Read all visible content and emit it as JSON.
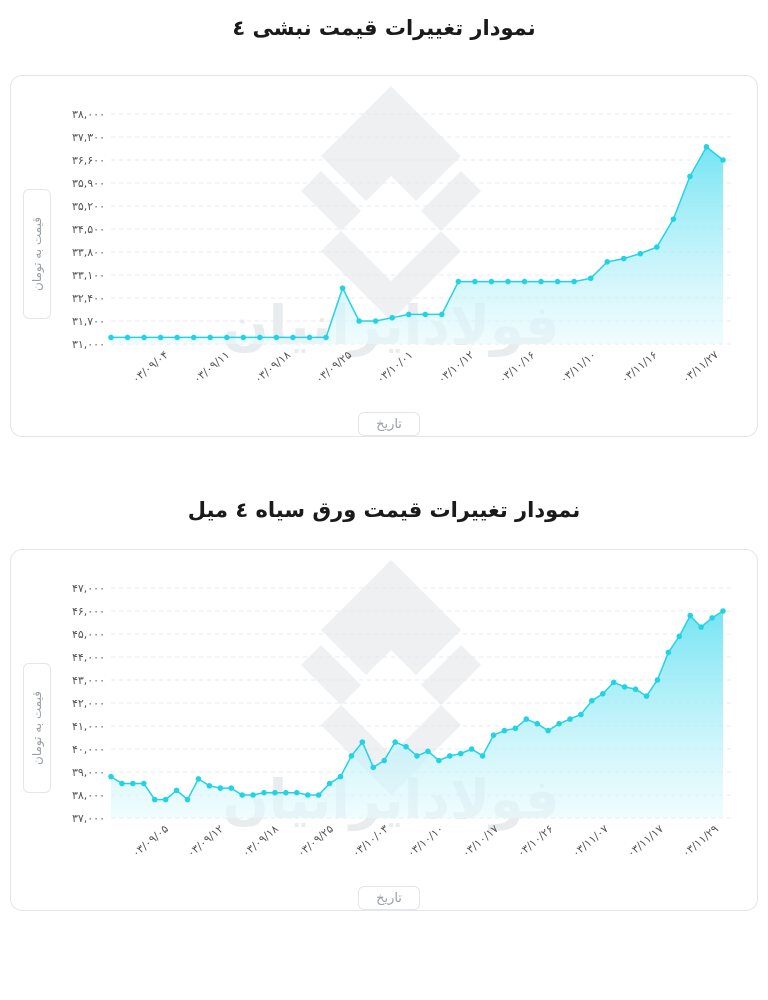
{
  "colors": {
    "line": "#22d3e6",
    "fill_top": "#6fe3f3",
    "fill_bottom": "#e6fafd",
    "grid": "#e6e9ec"
  },
  "watermark": {
    "text": "فولادایرانیان"
  },
  "charts": [
    {
      "title": "نمودار تغییرات قیمت نبشی ٤",
      "ylabel": "قیمت به تومان",
      "xlabel": "تاریخ",
      "yticks": [
        "۳۱,۰۰۰",
        "۳۱,۷۰۰",
        "۳۲,۴۰۰",
        "۳۳,۱۰۰",
        "۳۳,۸۰۰",
        "۳۴,۵۰۰",
        "۳۵,۲۰۰",
        "۳۵,۹۰۰",
        "۳۶,۶۰۰",
        "۳۷,۳۰۰",
        "۳۸,۰۰۰"
      ],
      "xticks": [
        "۰۳/۰۹/۰۴",
        "۰۳/۰۹/۱۱",
        "۰۳/۰۹/۱۸",
        "۰۳/۰۹/۲۵",
        "۰۳/۱۰/۰۱",
        "۰۳/۱۰/۱۲",
        "۰۳/۱۰/۱۶",
        "۰۳/۱۱/۱۰",
        "۰۳/۱۱/۱۶",
        "۰۳/۱۱/۲۷"
      ]
    },
    {
      "title": "نمودار تغییرات قیمت ورق سیاه ٤ میل",
      "ylabel": "قیمت به تومان",
      "xlabel": "تاریخ",
      "yticks": [
        "۳۷,۰۰۰",
        "۳۸,۰۰۰",
        "۳۹,۰۰۰",
        "۴۰,۰۰۰",
        "۴۱,۰۰۰",
        "۴۲,۰۰۰",
        "۴۳,۰۰۰",
        "۴۴,۰۰۰",
        "۴۵,۰۰۰",
        "۴۶,۰۰۰",
        "۴۷,۰۰۰"
      ],
      "xticks": [
        "۰۳/۰۹/۰۵",
        "۰۳/۰۹/۱۲",
        "۰۳/۰۹/۱۸",
        "۰۳/۰۹/۲۵",
        "۰۳/۱۰/۰۳",
        "۰۳/۱۰/۱۰",
        "۰۳/۱۰/۱۷",
        "۰۳/۱۰/۲۶",
        "۰۳/۱۱/۰۷",
        "۰۳/۱۱/۱۷",
        "۰۳/۱۱/۲۹"
      ]
    }
  ],
  "chart_data": [
    {
      "type": "area",
      "title": "نمودار تغییرات قیمت نبشی ٤",
      "xlabel": "تاریخ",
      "ylabel": "قیمت به تومان",
      "ylim": [
        31000,
        38000
      ],
      "grid": true,
      "values": [
        31200,
        31200,
        31200,
        31200,
        31200,
        31200,
        31200,
        31200,
        31200,
        31200,
        31200,
        31200,
        31200,
        31200,
        32700,
        31700,
        31700,
        31800,
        31900,
        31900,
        31900,
        32900,
        32900,
        32900,
        32900,
        32900,
        32900,
        32900,
        32900,
        33000,
        33500,
        33600,
        33750,
        33950,
        34800,
        36100,
        37000,
        36600
      ]
    },
    {
      "type": "area",
      "title": "نمودار تغییرات قیمت ورق سیاه ٤ میل",
      "xlabel": "تاریخ",
      "ylabel": "قیمت به تومان",
      "ylim": [
        37000,
        47000
      ],
      "grid": true,
      "values": [
        38800,
        38500,
        38500,
        38500,
        37800,
        37800,
        38200,
        37800,
        38700,
        38400,
        38300,
        38300,
        38000,
        38000,
        38100,
        38100,
        38100,
        38100,
        38000,
        38000,
        38500,
        38800,
        39700,
        40300,
        39200,
        39500,
        40300,
        40100,
        39700,
        39900,
        39500,
        39700,
        39800,
        40000,
        39700,
        40600,
        40800,
        40900,
        41300,
        41100,
        40800,
        41100,
        41300,
        41500,
        42100,
        42400,
        42900,
        42700,
        42600,
        42300,
        43000,
        44200,
        44900,
        45800,
        45300,
        45700,
        46000
      ]
    }
  ]
}
